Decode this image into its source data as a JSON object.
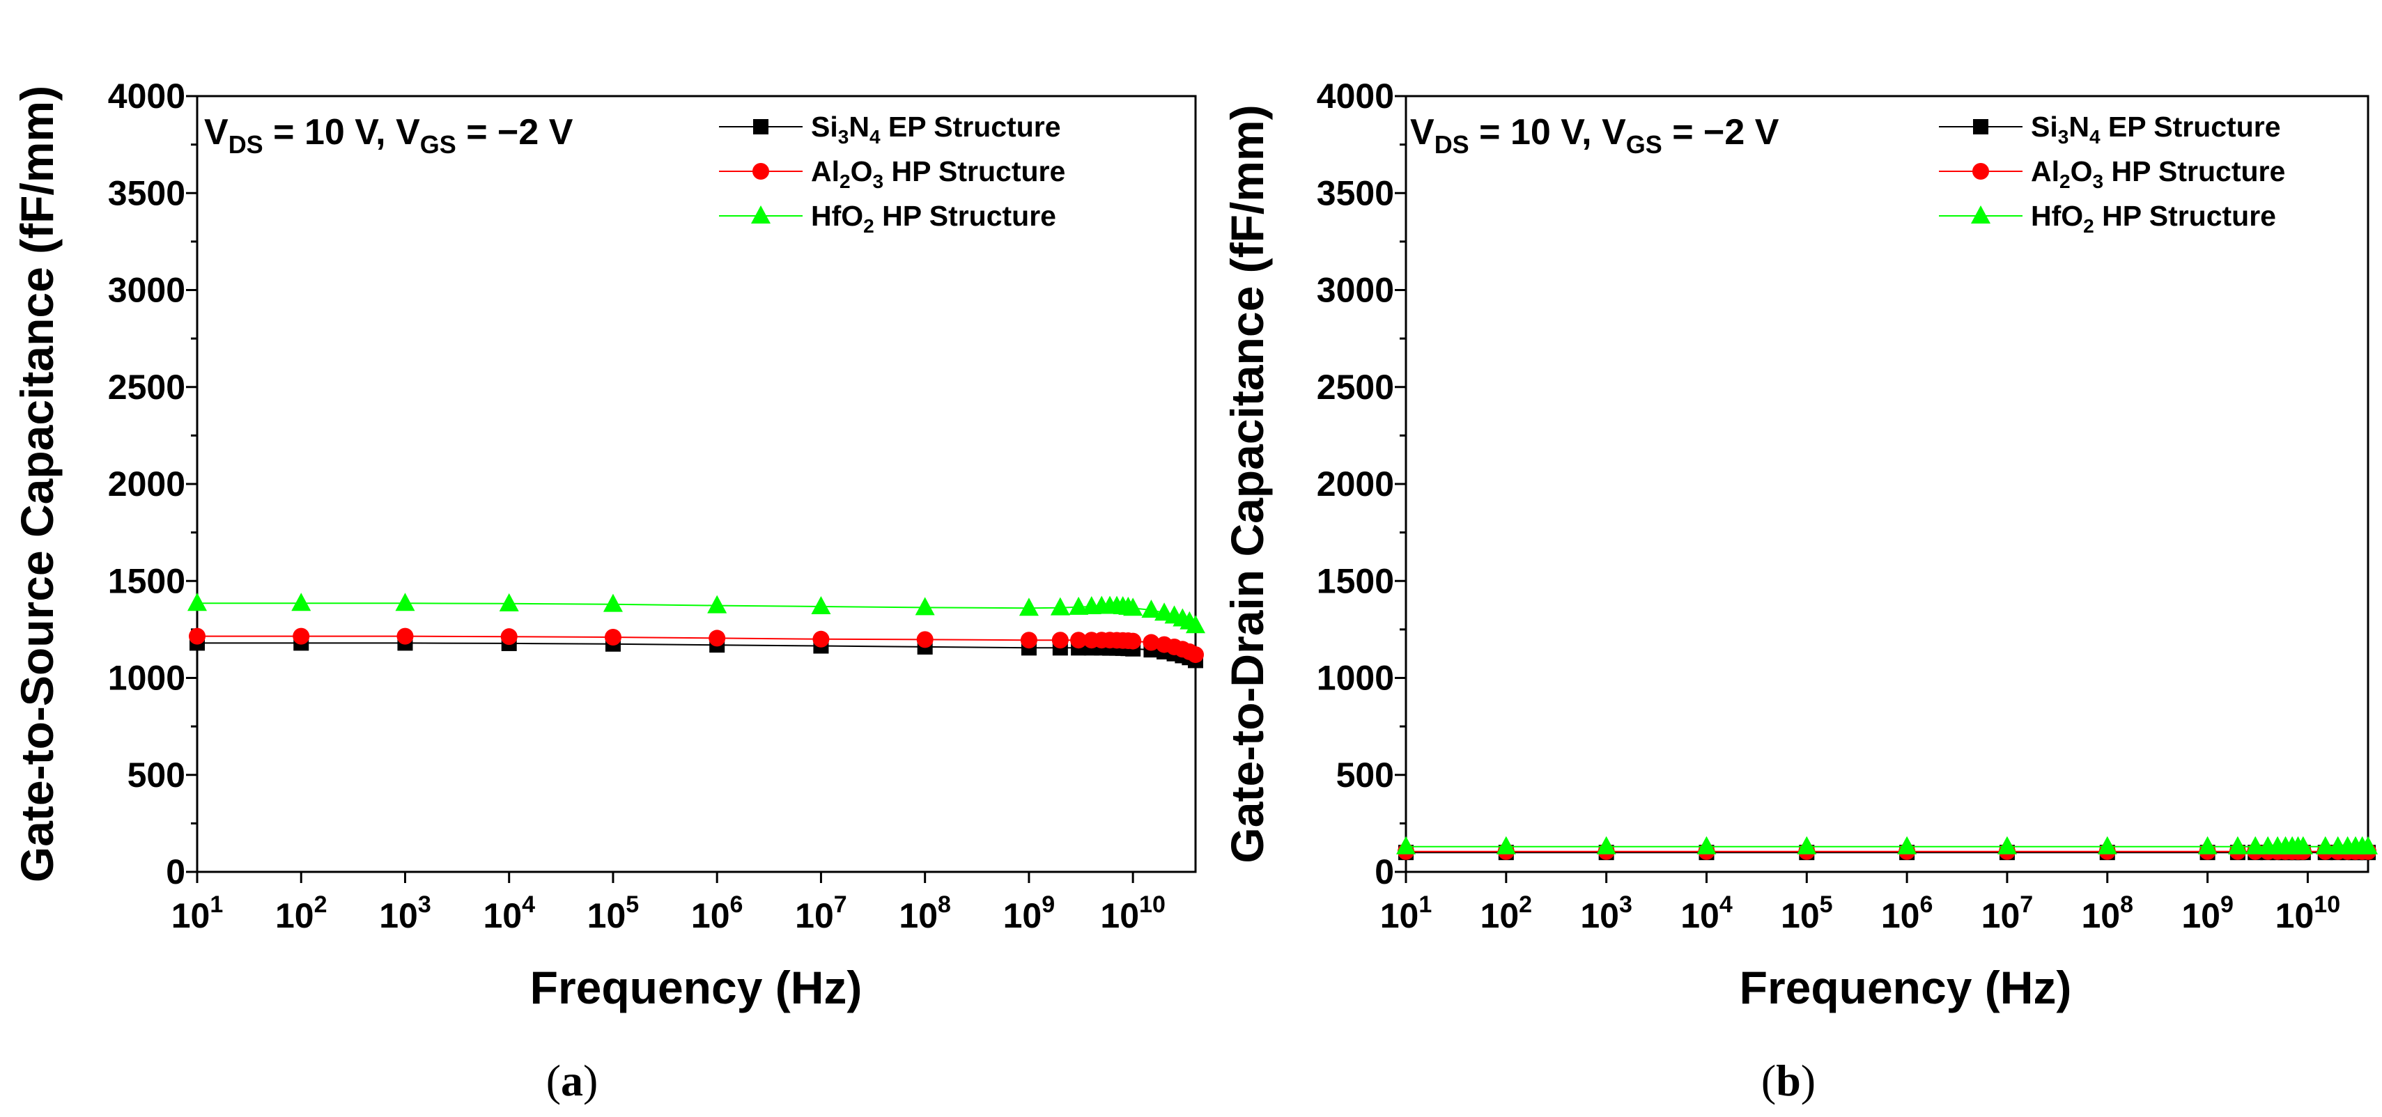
{
  "chart_data": [
    {
      "type": "line",
      "panel_label": "a",
      "title": "",
      "xlabel": "Frequency (Hz)",
      "ylabel": "Gate-to-Source Capacitance (fF/mm)",
      "xscale": "log",
      "xlim": [
        10,
        40000000000
      ],
      "ylim": [
        0,
        4000
      ],
      "xtick_labels": [
        {
          "value": 10,
          "base": "10",
          "exp": "1"
        },
        {
          "value": 100,
          "base": "10",
          "exp": "2"
        },
        {
          "value": 1000,
          "base": "10",
          "exp": "3"
        },
        {
          "value": 10000,
          "base": "10",
          "exp": "4"
        },
        {
          "value": 100000,
          "base": "10",
          "exp": "5"
        },
        {
          "value": 1000000,
          "base": "10",
          "exp": "6"
        },
        {
          "value": 10000000,
          "base": "10",
          "exp": "7"
        },
        {
          "value": 100000000,
          "base": "10",
          "exp": "8"
        },
        {
          "value": 1000000000,
          "base": "10",
          "exp": "9"
        },
        {
          "value": 10000000000,
          "base": "10",
          "exp": "10"
        }
      ],
      "ytick_labels": [
        "0",
        "500",
        "1000",
        "1500",
        "2000",
        "2500",
        "3000",
        "3500",
        "4000"
      ],
      "annotation": {
        "v1": "V",
        "s1": "DS",
        "mid": " = 10 V, ",
        "v2": "V",
        "s2": "GS",
        "end": " = −2 V"
      },
      "legend_position": "top-right",
      "x": [
        10,
        100,
        1000,
        10000,
        100000,
        1000000,
        10000000,
        100000000,
        1000000000,
        2000000000,
        3000000000,
        4000000000,
        5000000000,
        6000000000,
        7000000000,
        8000000000,
        9000000000,
        10000000000,
        15000000000,
        20000000000,
        25000000000,
        30000000000,
        35000000000,
        40000000000
      ],
      "series": [
        {
          "name": "Si3N4 EP Structure",
          "label_parts": [
            "Si",
            "3",
            "N",
            "4",
            " EP Structure"
          ],
          "marker": "square",
          "color": "#000000",
          "values": [
            1180,
            1180,
            1180,
            1178,
            1175,
            1170,
            1165,
            1160,
            1155,
            1155,
            1155,
            1155,
            1155,
            1154,
            1154,
            1153,
            1152,
            1150,
            1145,
            1135,
            1125,
            1115,
            1105,
            1090
          ]
        },
        {
          "name": "Al2O3 HP Structure",
          "label_parts": [
            "Al",
            "2",
            "O",
            "3",
            " HP Structure"
          ],
          "marker": "circle",
          "color": "#ff0000",
          "values": [
            1215,
            1215,
            1215,
            1213,
            1210,
            1205,
            1200,
            1198,
            1195,
            1195,
            1195,
            1195,
            1195,
            1195,
            1194,
            1193,
            1192,
            1190,
            1183,
            1172,
            1160,
            1148,
            1135,
            1120
          ]
        },
        {
          "name": "HfO2 HP Structure",
          "label_parts": [
            "HfO",
            "2",
            " HP Structure"
          ],
          "marker": "triangle",
          "color": "#00ff00",
          "values": [
            1385,
            1385,
            1385,
            1383,
            1380,
            1373,
            1368,
            1363,
            1360,
            1362,
            1365,
            1368,
            1370,
            1370,
            1370,
            1368,
            1365,
            1360,
            1350,
            1335,
            1320,
            1305,
            1290,
            1270
          ]
        }
      ]
    },
    {
      "type": "line",
      "panel_label": "b",
      "title": "",
      "xlabel": "Frequency (Hz)",
      "ylabel": "Gate-to-Drain Capacitance (fF/mm)",
      "xscale": "log",
      "xlim": [
        10,
        40000000000
      ],
      "ylim": [
        0,
        4000
      ],
      "xtick_labels": [
        {
          "value": 10,
          "base": "10",
          "exp": "1"
        },
        {
          "value": 100,
          "base": "10",
          "exp": "2"
        },
        {
          "value": 1000,
          "base": "10",
          "exp": "3"
        },
        {
          "value": 10000,
          "base": "10",
          "exp": "4"
        },
        {
          "value": 100000,
          "base": "10",
          "exp": "5"
        },
        {
          "value": 1000000,
          "base": "10",
          "exp": "6"
        },
        {
          "value": 10000000,
          "base": "10",
          "exp": "7"
        },
        {
          "value": 100000000,
          "base": "10",
          "exp": "8"
        },
        {
          "value": 1000000000,
          "base": "10",
          "exp": "9"
        },
        {
          "value": 10000000000,
          "base": "10",
          "exp": "10"
        }
      ],
      "ytick_labels": [
        "0",
        "500",
        "1000",
        "1500",
        "2000",
        "2500",
        "3000",
        "3500",
        "4000"
      ],
      "annotation": {
        "v1": "V",
        "s1": "DS",
        "mid": " = 10 V, ",
        "v2": "V",
        "s2": "GS",
        "end": " = −2 V"
      },
      "legend_position": "top-right",
      "x": [
        10,
        100,
        1000,
        10000,
        100000,
        1000000,
        10000000,
        100000000,
        1000000000,
        2000000000,
        3000000000,
        4000000000,
        5000000000,
        6000000000,
        7000000000,
        8000000000,
        9000000000,
        15000000000,
        20000000000,
        25000000000,
        30000000000,
        35000000000,
        40000000000
      ],
      "series": [
        {
          "name": "Si3N4 EP Structure",
          "label_parts": [
            "Si",
            "3",
            "N",
            "4",
            " EP Structure"
          ],
          "marker": "square",
          "color": "#000000",
          "values": [
            100,
            100,
            100,
            100,
            100,
            100,
            100,
            100,
            100,
            100,
            100,
            100,
            100,
            100,
            100,
            100,
            100,
            100,
            100,
            100,
            100,
            100,
            100
          ]
        },
        {
          "name": "Al2O3 HP Structure",
          "label_parts": [
            "Al",
            "2",
            "O",
            "3",
            " HP Structure"
          ],
          "marker": "circle",
          "color": "#ff0000",
          "values": [
            105,
            105,
            105,
            105,
            105,
            105,
            105,
            105,
            105,
            105,
            105,
            105,
            105,
            105,
            105,
            105,
            105,
            105,
            105,
            105,
            105,
            105,
            105
          ]
        },
        {
          "name": "HfO2 HP Structure",
          "label_parts": [
            "HfO",
            "2",
            " HP Structure"
          ],
          "marker": "triangle",
          "color": "#00ff00",
          "values": [
            130,
            130,
            130,
            130,
            130,
            130,
            130,
            130,
            130,
            130,
            130,
            130,
            130,
            130,
            130,
            130,
            130,
            130,
            130,
            130,
            130,
            130,
            130
          ]
        }
      ]
    }
  ]
}
